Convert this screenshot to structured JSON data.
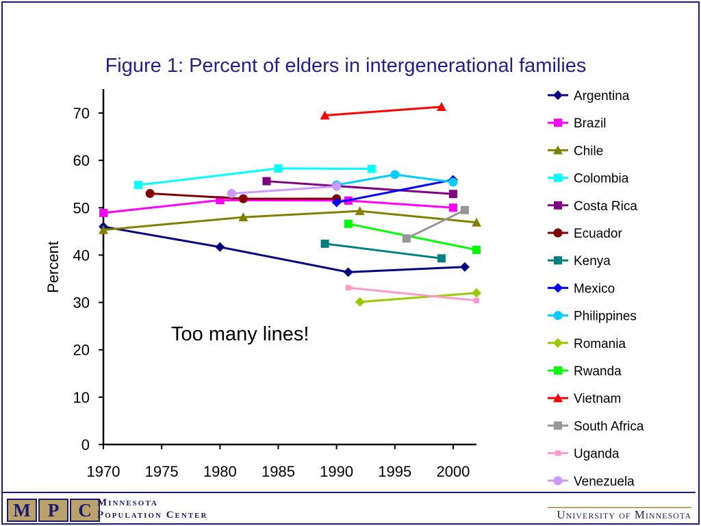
{
  "title": "Figure 1: Percent of elders in intergenerational families",
  "annotation": "Too many lines!",
  "footer": {
    "logo_letters": [
      "M",
      "P",
      "C"
    ],
    "mpc_line1": "Minnesota",
    "mpc_line2": "Population Center",
    "university": "University of Minnesota"
  },
  "chart_data": {
    "type": "line",
    "title": "Figure 1: Percent of elders in intergenerational families",
    "xlabel": "",
    "ylabel": "Percent",
    "xlim": [
      1970,
      2002
    ],
    "ylim": [
      0,
      75
    ],
    "xticks": [
      1970,
      1975,
      1980,
      1985,
      1990,
      1995,
      2000
    ],
    "yticks": [
      0,
      10,
      20,
      30,
      40,
      50,
      60,
      70
    ],
    "legend": "right",
    "grid": false,
    "series": [
      {
        "name": "Argentina",
        "color": "#000080",
        "marker": "diamond",
        "x": [
          1970,
          1980,
          1991,
          2001
        ],
        "y": [
          46.0,
          41.7,
          36.4,
          37.5
        ]
      },
      {
        "name": "Brazil",
        "color": "#ff00ff",
        "marker": "square",
        "x": [
          1970,
          1980,
          1991,
          2000
        ],
        "y": [
          48.9,
          51.6,
          51.5,
          50.0
        ]
      },
      {
        "name": "Chile",
        "color": "#808000",
        "marker": "triangle",
        "x": [
          1970,
          1982,
          1992,
          2002
        ],
        "y": [
          45.3,
          48.0,
          49.3,
          46.9
        ]
      },
      {
        "name": "Colombia",
        "color": "#00ffff",
        "marker": "square",
        "x": [
          1973,
          1985,
          1993
        ],
        "y": [
          54.8,
          58.3,
          58.2
        ]
      },
      {
        "name": "Costa Rica",
        "color": "#800080",
        "marker": "square",
        "x": [
          1984,
          2000
        ],
        "y": [
          55.6,
          52.9
        ]
      },
      {
        "name": "Ecuador",
        "color": "#800000",
        "marker": "circle",
        "x": [
          1974,
          1982,
          1990
        ],
        "y": [
          53.0,
          51.9,
          51.9
        ]
      },
      {
        "name": "Kenya",
        "color": "#008080",
        "marker": "square",
        "x": [
          1989,
          1999
        ],
        "y": [
          42.4,
          39.3
        ]
      },
      {
        "name": "Mexico",
        "color": "#0000ff",
        "marker": "diamond",
        "x": [
          1990,
          2000
        ],
        "y": [
          51.1,
          55.9
        ]
      },
      {
        "name": "Philippines",
        "color": "#00ccff",
        "marker": "circle",
        "x": [
          1990,
          1995,
          2000
        ],
        "y": [
          54.8,
          57.0,
          55.4
        ]
      },
      {
        "name": "Romania",
        "color": "#99cc00",
        "marker": "diamond",
        "x": [
          1992,
          2002
        ],
        "y": [
          30.1,
          32.0
        ]
      },
      {
        "name": "Rwanda",
        "color": "#00ff00",
        "marker": "square",
        "x": [
          1991,
          2002
        ],
        "y": [
          46.6,
          41.1
        ]
      },
      {
        "name": "Vietnam",
        "color": "#ff0000",
        "marker": "triangle",
        "x": [
          1989,
          1999
        ],
        "y": [
          69.5,
          71.3
        ]
      },
      {
        "name": "South Africa",
        "color": "#969696",
        "marker": "square",
        "x": [
          1996,
          2001
        ],
        "y": [
          43.5,
          49.5
        ]
      },
      {
        "name": "Uganda",
        "color": "#ff99cc",
        "marker": "smallsquare",
        "x": [
          1991,
          2002
        ],
        "y": [
          33.1,
          30.4
        ]
      },
      {
        "name": "Venezuela",
        "color": "#cc99ff",
        "marker": "circle",
        "x": [
          1981,
          1990
        ],
        "y": [
          53.0,
          54.5
        ]
      }
    ]
  }
}
